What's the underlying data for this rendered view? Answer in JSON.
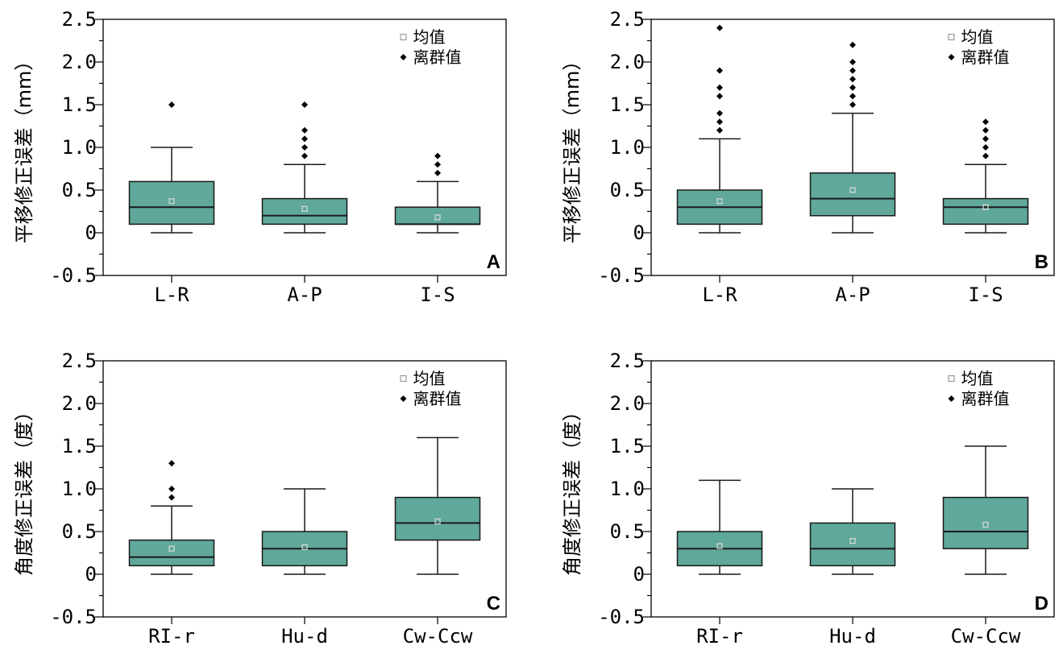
{
  "colors": {
    "box_fill": "#5fa89a",
    "outlier": "#000000",
    "mean_marker": "#dddddd"
  },
  "chart_data": [
    {
      "panel_label": "A",
      "type": "box",
      "ylabel": "平移修正误差（mm）",
      "ylim": [
        -0.5,
        2.5
      ],
      "yticks": [
        "-0.5",
        "0",
        "0.5",
        "1.0",
        "1.5",
        "2.0",
        "2.5"
      ],
      "legend": {
        "mean": "均值",
        "outlier": "离群值"
      },
      "categories": [
        "L-R",
        "A-P",
        "I-S"
      ],
      "boxes": [
        {
          "min": 0,
          "q1": 0.1,
          "median": 0.3,
          "q3": 0.6,
          "max": 1.0,
          "mean": 0.37,
          "outliers": [
            1.5
          ]
        },
        {
          "min": 0,
          "q1": 0.1,
          "median": 0.2,
          "q3": 0.4,
          "max": 0.8,
          "mean": 0.28,
          "outliers": [
            0.9,
            1.0,
            1.1,
            1.2,
            1.5
          ]
        },
        {
          "min": 0,
          "q1": 0.1,
          "median": 0.1,
          "q3": 0.3,
          "max": 0.6,
          "mean": 0.18,
          "outliers": [
            0.7,
            0.8,
            0.9
          ]
        }
      ]
    },
    {
      "panel_label": "B",
      "type": "box",
      "ylabel": "平移修正误差（mm）",
      "ylim": [
        -0.5,
        2.5
      ],
      "yticks": [
        "-0.5",
        "0",
        "0.5",
        "1.0",
        "1.5",
        "2.0",
        "2.5"
      ],
      "legend": {
        "mean": "均值",
        "outlier": "离群值"
      },
      "categories": [
        "L-R",
        "A-P",
        "I-S"
      ],
      "boxes": [
        {
          "min": 0,
          "q1": 0.1,
          "median": 0.3,
          "q3": 0.5,
          "max": 1.1,
          "mean": 0.37,
          "outliers": [
            1.2,
            1.3,
            1.4,
            1.6,
            1.7,
            1.9,
            2.4
          ]
        },
        {
          "min": 0,
          "q1": 0.2,
          "median": 0.4,
          "q3": 0.7,
          "max": 1.4,
          "mean": 0.5,
          "outliers": [
            1.5,
            1.6,
            1.7,
            1.8,
            1.9,
            2.0,
            2.2
          ]
        },
        {
          "min": 0,
          "q1": 0.1,
          "median": 0.3,
          "q3": 0.4,
          "max": 0.8,
          "mean": 0.3,
          "outliers": [
            0.9,
            1.0,
            1.1,
            1.2,
            1.3
          ]
        }
      ]
    },
    {
      "panel_label": "C",
      "type": "box",
      "ylabel": "角度修正误差（度）",
      "ylim": [
        -0.5,
        2.5
      ],
      "yticks": [
        "-0.5",
        "0",
        "0.5",
        "1.0",
        "1.5",
        "2.0",
        "2.5"
      ],
      "legend": {
        "mean": "均值",
        "outlier": "离群值"
      },
      "categories": [
        "RI-r",
        "Hu-d",
        "Cw-Ccw"
      ],
      "boxes": [
        {
          "min": 0,
          "q1": 0.1,
          "median": 0.2,
          "q3": 0.4,
          "max": 0.8,
          "mean": 0.3,
          "outliers": [
            0.9,
            1.0,
            1.3
          ]
        },
        {
          "min": 0,
          "q1": 0.1,
          "median": 0.3,
          "q3": 0.5,
          "max": 1.0,
          "mean": 0.32,
          "outliers": []
        },
        {
          "min": 0,
          "q1": 0.4,
          "median": 0.6,
          "q3": 0.9,
          "max": 1.6,
          "mean": 0.62,
          "outliers": []
        }
      ]
    },
    {
      "panel_label": "D",
      "type": "box",
      "ylabel": "角度修正误差（度）",
      "ylim": [
        -0.5,
        2.5
      ],
      "yticks": [
        "-0.5",
        "0",
        "0.5",
        "1.0",
        "1.5",
        "2.0",
        "2.5"
      ],
      "legend": {
        "mean": "均值",
        "outlier": "离群值"
      },
      "categories": [
        "RI-r",
        "Hu-d",
        "Cw-Ccw"
      ],
      "boxes": [
        {
          "min": 0,
          "q1": 0.1,
          "median": 0.3,
          "q3": 0.5,
          "max": 1.1,
          "mean": 0.33,
          "outliers": []
        },
        {
          "min": 0,
          "q1": 0.1,
          "median": 0.3,
          "q3": 0.6,
          "max": 1.0,
          "mean": 0.39,
          "outliers": []
        },
        {
          "min": 0,
          "q1": 0.3,
          "median": 0.5,
          "q3": 0.9,
          "max": 1.5,
          "mean": 0.58,
          "outliers": []
        }
      ]
    }
  ]
}
